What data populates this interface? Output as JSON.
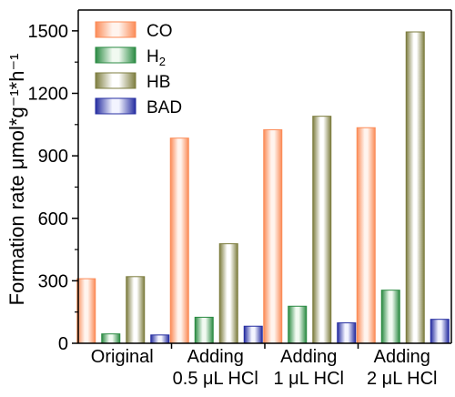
{
  "chart_data": {
    "type": "bar",
    "categories": [
      [
        "Original"
      ],
      [
        "Adding",
        "0.5 μL HCl"
      ],
      [
        "Adding",
        "1 μL HCl"
      ],
      [
        "Adding",
        "2 μL HCl"
      ]
    ],
    "series": [
      {
        "name": "CO",
        "legend_main": "CO",
        "legend_sub": "",
        "values": [
          310,
          985,
          1025,
          1035
        ],
        "colors": {
          "edge": "#fb8b57",
          "light": "#fff4ee"
        }
      },
      {
        "name": "H2",
        "legend_main": "H",
        "legend_sub": "2",
        "values": [
          45,
          125,
          178,
          255
        ],
        "colors": {
          "edge": "#2a8a42",
          "light": "#f1faf1"
        }
      },
      {
        "name": "HB",
        "legend_main": "HB",
        "legend_sub": "",
        "values": [
          320,
          478,
          1090,
          1495
        ],
        "colors": {
          "edge": "#7d7d3f",
          "light": "#ffffff"
        }
      },
      {
        "name": "BAD",
        "legend_main": "BAD",
        "legend_sub": "",
        "values": [
          40,
          82,
          98,
          115
        ],
        "colors": {
          "edge": "#252da0",
          "light": "#f3f4ff"
        }
      }
    ],
    "ylabel": "Formation rate μmol*g⁻¹*h⁻¹",
    "ylim": [
      0,
      1600
    ],
    "yticks": [
      0,
      300,
      600,
      900,
      1200,
      1500
    ],
    "grid": false,
    "legend_position": "top-left"
  }
}
